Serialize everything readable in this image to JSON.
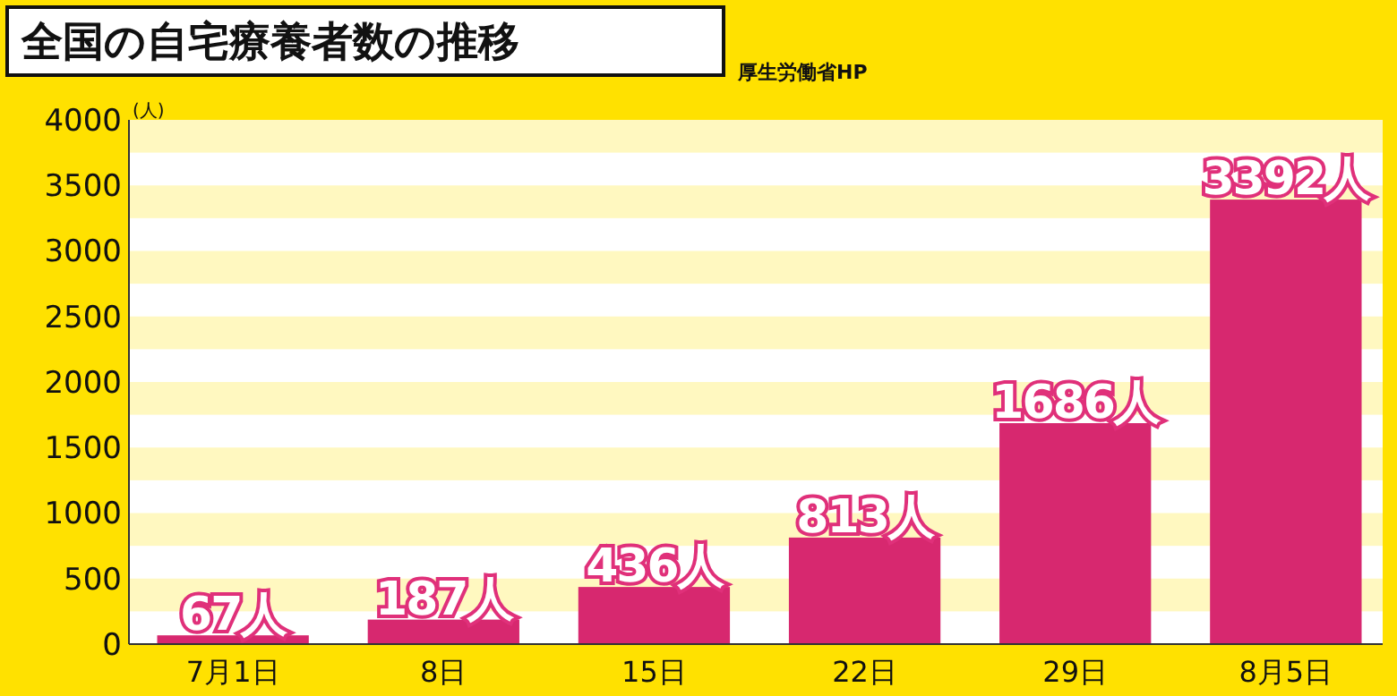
{
  "chart_data": {
    "type": "bar",
    "title": "全国の自宅療養者数の推移",
    "ylabel": "(人)",
    "annotations": [
      "厚生労働省HP"
    ],
    "categories": [
      "7月1日",
      "8日",
      "15日",
      "22日",
      "29日",
      "8月5日"
    ],
    "values": [
      67,
      187,
      436,
      813,
      1686,
      3392
    ],
    "value_labels": [
      "67人",
      "187人",
      "436人",
      "813人",
      "1686人",
      "3392人"
    ],
    "color": "#d7286f",
    "ylim": [
      0,
      4000
    ],
    "yticks": [
      0,
      500,
      1000,
      1500,
      2000,
      2500,
      3000,
      3500,
      4000
    ]
  }
}
